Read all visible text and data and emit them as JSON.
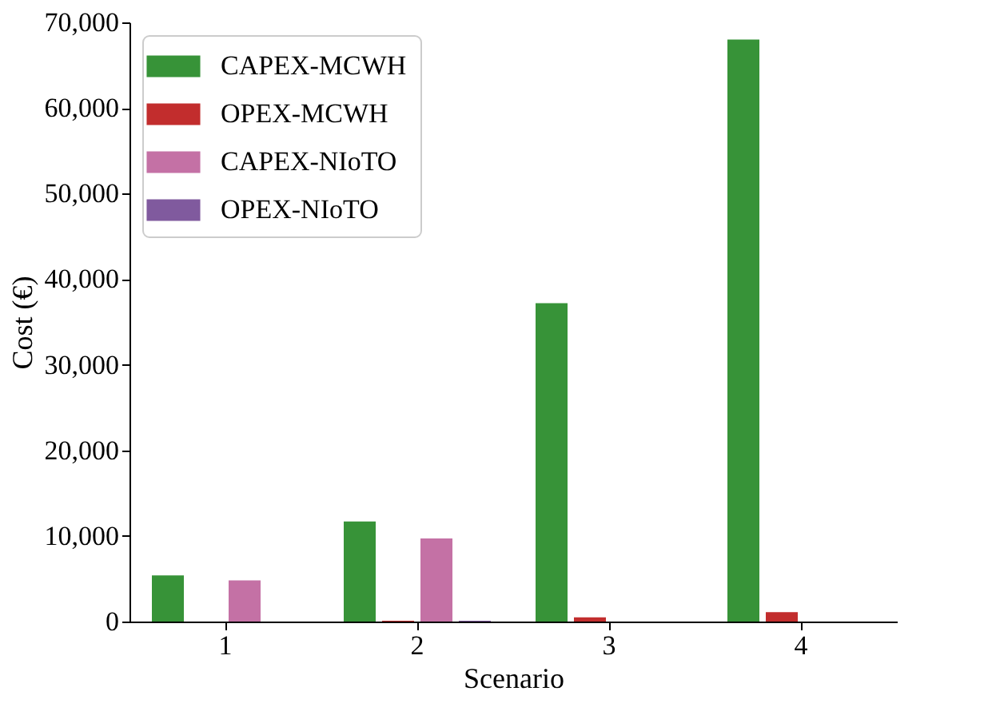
{
  "chart_data": {
    "type": "bar",
    "xlabel": "Scenario",
    "ylabel": "Cost (€)",
    "categories": [
      "1",
      "2",
      "3",
      "4"
    ],
    "series": [
      {
        "name": "CAPEX-MCWH",
        "color": "#379338",
        "values": [
          5400,
          11700,
          37200,
          68000
        ]
      },
      {
        "name": "OPEX-MCWH",
        "color": "#c22d2d",
        "values": [
          0,
          100,
          500,
          1100
        ]
      },
      {
        "name": "CAPEX-NIoTO",
        "color": "#c471a5",
        "values": [
          4800,
          9700,
          0,
          0
        ]
      },
      {
        "name": "OPEX-NIoTO",
        "color": "#805a9e",
        "values": [
          0,
          100,
          0,
          0
        ]
      }
    ],
    "ylim": [
      0,
      70000
    ],
    "yticks": [
      0,
      {
        "value": 10000,
        "label": "10,000"
      },
      {
        "value": 20000,
        "label": "20,000"
      },
      {
        "value": 30000,
        "label": "30,000"
      },
      {
        "value": 40000,
        "label": "40,000"
      },
      {
        "value": 50000,
        "label": "50,000"
      },
      {
        "value": 60000,
        "label": "60,000"
      },
      {
        "value": 70000,
        "label": "70,000"
      }
    ],
    "grid": false,
    "legend": "top left"
  }
}
